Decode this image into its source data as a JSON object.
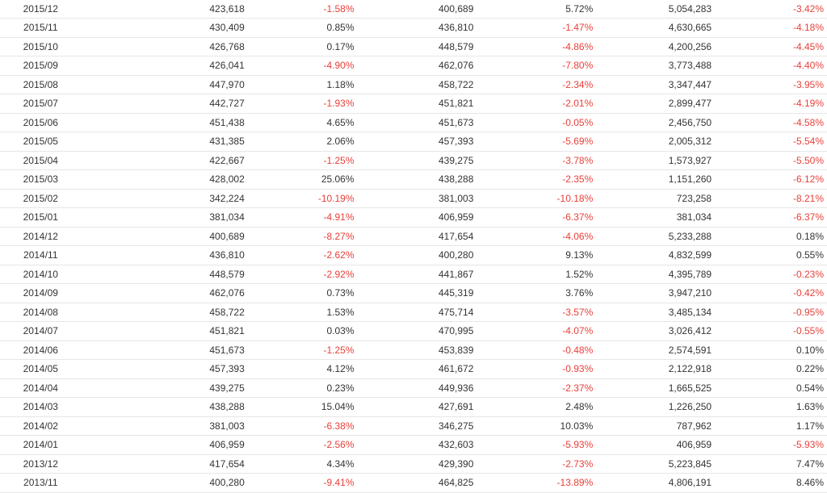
{
  "table": {
    "rows": [
      [
        "2015/12",
        "423,618",
        "-1.58%",
        "400,689",
        "5.72%",
        "5,054,283",
        "-3.42%"
      ],
      [
        "2015/11",
        "430,409",
        "0.85%",
        "436,810",
        "-1.47%",
        "4,630,665",
        "-4.18%"
      ],
      [
        "2015/10",
        "426,768",
        "0.17%",
        "448,579",
        "-4.86%",
        "4,200,256",
        "-4.45%"
      ],
      [
        "2015/09",
        "426,041",
        "-4.90%",
        "462,076",
        "-7.80%",
        "3,773,488",
        "-4.40%"
      ],
      [
        "2015/08",
        "447,970",
        "1.18%",
        "458,722",
        "-2.34%",
        "3,347,447",
        "-3.95%"
      ],
      [
        "2015/07",
        "442,727",
        "-1.93%",
        "451,821",
        "-2.01%",
        "2,899,477",
        "-4.19%"
      ],
      [
        "2015/06",
        "451,438",
        "4.65%",
        "451,673",
        "-0.05%",
        "2,456,750",
        "-4.58%"
      ],
      [
        "2015/05",
        "431,385",
        "2.06%",
        "457,393",
        "-5.69%",
        "2,005,312",
        "-5.54%"
      ],
      [
        "2015/04",
        "422,667",
        "-1.25%",
        "439,275",
        "-3.78%",
        "1,573,927",
        "-5.50%"
      ],
      [
        "2015/03",
        "428,002",
        "25.06%",
        "438,288",
        "-2.35%",
        "1,151,260",
        "-6.12%"
      ],
      [
        "2015/02",
        "342,224",
        "-10.19%",
        "381,003",
        "-10.18%",
        "723,258",
        "-8.21%"
      ],
      [
        "2015/01",
        "381,034",
        "-4.91%",
        "406,959",
        "-6.37%",
        "381,034",
        "-6.37%"
      ],
      [
        "2014/12",
        "400,689",
        "-8.27%",
        "417,654",
        "-4.06%",
        "5,233,288",
        "0.18%"
      ],
      [
        "2014/11",
        "436,810",
        "-2.62%",
        "400,280",
        "9.13%",
        "4,832,599",
        "0.55%"
      ],
      [
        "2014/10",
        "448,579",
        "-2.92%",
        "441,867",
        "1.52%",
        "4,395,789",
        "-0.23%"
      ],
      [
        "2014/09",
        "462,076",
        "0.73%",
        "445,319",
        "3.76%",
        "3,947,210",
        "-0.42%"
      ],
      [
        "2014/08",
        "458,722",
        "1.53%",
        "475,714",
        "-3.57%",
        "3,485,134",
        "-0.95%"
      ],
      [
        "2014/07",
        "451,821",
        "0.03%",
        "470,995",
        "-4.07%",
        "3,026,412",
        "-0.55%"
      ],
      [
        "2014/06",
        "451,673",
        "-1.25%",
        "453,839",
        "-0.48%",
        "2,574,591",
        "0.10%"
      ],
      [
        "2014/05",
        "457,393",
        "4.12%",
        "461,672",
        "-0.93%",
        "2,122,918",
        "0.22%"
      ],
      [
        "2014/04",
        "439,275",
        "0.23%",
        "449,936",
        "-2.37%",
        "1,665,525",
        "0.54%"
      ],
      [
        "2014/03",
        "438,288",
        "15.04%",
        "427,691",
        "2.48%",
        "1,226,250",
        "1.63%"
      ],
      [
        "2014/02",
        "381,003",
        "-6.38%",
        "346,275",
        "10.03%",
        "787,962",
        "1.17%"
      ],
      [
        "2014/01",
        "406,959",
        "-2.56%",
        "432,603",
        "-5.93%",
        "406,959",
        "-5.93%"
      ],
      [
        "2013/12",
        "417,654",
        "4.34%",
        "429,390",
        "-2.73%",
        "5,223,845",
        "7.47%"
      ],
      [
        "2013/11",
        "400,280",
        "-9.41%",
        "464,825",
        "-13.89%",
        "4,806,191",
        "8.46%"
      ]
    ]
  },
  "colors": {
    "negative": "#e8403a",
    "text": "#333333",
    "row_border": "#e6e6e6"
  }
}
